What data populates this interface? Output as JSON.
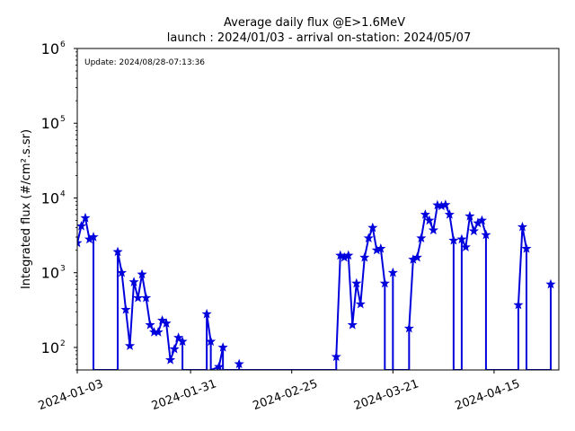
{
  "chart_data": {
    "type": "line",
    "title": "Average daily flux @E>1.6MeV",
    "subtitle": "launch : 2024/01/03 - arrival on-station: 2024/05/07",
    "annotation": "Update: 2024/08/28-07:13:36",
    "ylabel": "Integrated flux (#/cm².s.sr)",
    "yscale": "log",
    "ylim": [
      50,
      1000000
    ],
    "xlim": [
      "2024-01-03",
      "2024-05-01"
    ],
    "xticks": [
      "2024-01-03",
      "2024-01-31",
      "2024-02-25",
      "2024-03-21",
      "2024-04-15"
    ],
    "yticks": [
      100,
      1000,
      10000,
      100000,
      1000000
    ],
    "ytick_labels": [
      {
        "base": "10",
        "exp": "2"
      },
      {
        "base": "10",
        "exp": "3"
      },
      {
        "base": "10",
        "exp": "4"
      },
      {
        "base": "10",
        "exp": "5"
      },
      {
        "base": "10",
        "exp": "6"
      }
    ],
    "grid": false,
    "series": [
      {
        "color": "#0000dd",
        "marker": "star",
        "points": [
          [
            "2024-01-03",
            2500
          ],
          [
            "2024-01-04",
            4200
          ],
          [
            "2024-01-05",
            5400
          ],
          [
            "2024-01-06",
            2800
          ],
          [
            "2024-01-07",
            3000
          ],
          [
            "2024-01-07",
            50
          ],
          [
            "2024-01-13",
            50
          ],
          [
            "2024-01-13",
            1900
          ],
          [
            "2024-01-14",
            1000
          ],
          [
            "2024-01-15",
            320
          ],
          [
            "2024-01-16",
            105
          ],
          [
            "2024-01-17",
            750
          ],
          [
            "2024-01-18",
            460
          ],
          [
            "2024-01-19",
            950
          ],
          [
            "2024-01-20",
            460
          ],
          [
            "2024-01-21",
            200
          ],
          [
            "2024-01-22",
            160
          ],
          [
            "2024-01-23",
            160
          ],
          [
            "2024-01-24",
            230
          ],
          [
            "2024-01-25",
            210
          ],
          [
            "2024-01-26",
            68
          ],
          [
            "2024-01-27",
            95
          ],
          [
            "2024-01-28",
            135
          ],
          [
            "2024-01-29",
            120
          ],
          [
            "2024-01-29",
            50
          ],
          [
            "2024-02-04",
            50
          ],
          [
            "2024-02-04",
            280
          ],
          [
            "2024-02-05",
            120
          ],
          [
            "2024-02-05",
            50
          ],
          [
            "2024-02-07",
            55
          ],
          [
            "2024-02-08",
            100
          ],
          [
            "2024-02-08",
            50
          ],
          [
            "2024-02-12",
            50
          ],
          [
            "2024-02-12",
            60
          ],
          [
            "2024-02-12",
            50
          ],
          [
            "2024-03-07",
            50
          ],
          [
            "2024-03-07",
            75
          ],
          [
            "2024-03-08",
            1700
          ],
          [
            "2024-03-09",
            1600
          ],
          [
            "2024-03-10",
            1700
          ],
          [
            "2024-03-11",
            200
          ],
          [
            "2024-03-12",
            720
          ],
          [
            "2024-03-13",
            380
          ],
          [
            "2024-03-14",
            1600
          ],
          [
            "2024-03-15",
            2900
          ],
          [
            "2024-03-16",
            4000
          ],
          [
            "2024-03-17",
            2000
          ],
          [
            "2024-03-18",
            2100
          ],
          [
            "2024-03-19",
            720
          ],
          [
            "2024-03-19",
            50
          ],
          [
            "2024-03-21",
            50
          ],
          [
            "2024-03-21",
            1000
          ],
          [
            "2024-03-21",
            50
          ],
          [
            "2024-03-25",
            50
          ],
          [
            "2024-03-25",
            180
          ],
          [
            "2024-03-26",
            1500
          ],
          [
            "2024-03-27",
            1600
          ],
          [
            "2024-03-28",
            2900
          ],
          [
            "2024-03-29",
            6000
          ],
          [
            "2024-03-30",
            5000
          ],
          [
            "2024-03-31",
            3700
          ],
          [
            "2024-04-01",
            8000
          ],
          [
            "2024-04-02",
            7800
          ],
          [
            "2024-04-03",
            8100
          ],
          [
            "2024-04-04",
            6000
          ],
          [
            "2024-04-05",
            2700
          ],
          [
            "2024-04-05",
            50
          ],
          [
            "2024-04-07",
            50
          ],
          [
            "2024-04-07",
            2800
          ],
          [
            "2024-04-08",
            2200
          ],
          [
            "2024-04-09",
            5700
          ],
          [
            "2024-04-10",
            3600
          ],
          [
            "2024-04-11",
            4600
          ],
          [
            "2024-04-12",
            5000
          ],
          [
            "2024-04-13",
            3200
          ],
          [
            "2024-04-13",
            50
          ],
          [
            "2024-04-21",
            50
          ],
          [
            "2024-04-21",
            370
          ],
          [
            "2024-04-22",
            4100
          ],
          [
            "2024-04-23",
            2100
          ],
          [
            "2024-04-23",
            50
          ],
          [
            "2024-04-29",
            50
          ],
          [
            "2024-04-29",
            700
          ],
          [
            "2024-04-29",
            50
          ]
        ]
      }
    ]
  }
}
